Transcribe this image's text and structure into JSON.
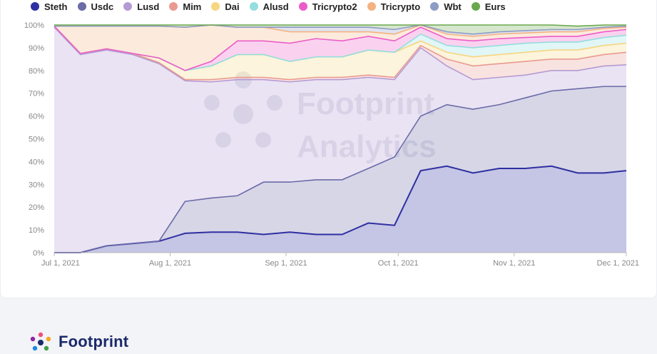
{
  "brand": {
    "name": "Footprint",
    "watermark_line1": "Footprint",
    "watermark_line2": "Analytics"
  },
  "chart_data": {
    "type": "area",
    "stacked": true,
    "normalized_percent": true,
    "legend_position": "top",
    "ylim": [
      0,
      100
    ],
    "yticks": [
      "0%",
      "10%",
      "20%",
      "30%",
      "40%",
      "50%",
      "60%",
      "70%",
      "80%",
      "90%",
      "100%"
    ],
    "x": [
      "2021-07-01",
      "2021-07-08",
      "2021-07-15",
      "2021-07-22",
      "2021-07-29",
      "2021-08-05",
      "2021-08-12",
      "2021-08-19",
      "2021-08-26",
      "2021-09-02",
      "2021-09-09",
      "2021-09-16",
      "2021-09-23",
      "2021-09-30",
      "2021-10-07",
      "2021-10-14",
      "2021-10-21",
      "2021-10-28",
      "2021-11-04",
      "2021-11-11",
      "2021-11-18",
      "2021-11-25",
      "2021-12-01"
    ],
    "xtick_labels": [
      "Jul 1, 2021",
      "Aug 1, 2021",
      "Sep 1, 2021",
      "Oct 1, 2021",
      "Nov 1, 2021",
      "Dec 1, 2021"
    ],
    "xtick_dates": [
      "2021-07-01",
      "2021-08-01",
      "2021-09-01",
      "2021-10-01",
      "2021-11-01",
      "2021-12-01"
    ],
    "series": [
      {
        "name": "Steth",
        "color": "#2e2fa0",
        "values": [
          0,
          0,
          3,
          4,
          5,
          8.5,
          9,
          9,
          8,
          9,
          8,
          8,
          13,
          12,
          36,
          38,
          35,
          37,
          37,
          38,
          35,
          35,
          36
        ]
      },
      {
        "name": "Usdc",
        "color": "#6b6ba8",
        "values": [
          0,
          0,
          0,
          0,
          0,
          14,
          15,
          16,
          23,
          22,
          24,
          24,
          24,
          30,
          24,
          27,
          28,
          28,
          31,
          33,
          37,
          38,
          37
        ]
      },
      {
        "name": "Lusd",
        "color": "#b59ad3",
        "values": [
          99,
          87,
          86,
          83,
          78,
          53,
          51,
          51,
          45,
          44,
          44,
          44,
          40,
          34,
          30,
          17,
          13,
          12,
          10,
          9,
          8,
          9,
          9.5
        ]
      },
      {
        "name": "Mim",
        "color": "#e99a90",
        "values": [
          0.5,
          0.5,
          0.5,
          0.5,
          0.5,
          0.5,
          1,
          1,
          1,
          1,
          1,
          1,
          1,
          1,
          1,
          3,
          6,
          6,
          6,
          5,
          5,
          5,
          5.5
        ]
      },
      {
        "name": "Dai",
        "color": "#f6d680",
        "values": [
          0,
          0,
          0,
          0,
          2,
          4,
          6,
          10,
          10,
          8,
          9,
          9,
          11,
          11,
          2,
          3,
          4,
          4,
          4,
          4,
          4,
          4,
          4
        ]
      },
      {
        "name": "Alusd",
        "color": "#93dede",
        "values": [
          0,
          0,
          0,
          0,
          0,
          0,
          0,
          0,
          0,
          0,
          0,
          0,
          0,
          0,
          3,
          3,
          4,
          4,
          4,
          3.5,
          3.5,
          3.5,
          3.5
        ]
      },
      {
        "name": "Tricrypto2",
        "color": "#ec5cc8",
        "values": [
          0,
          0,
          0,
          0,
          0,
          0,
          2,
          6,
          6,
          8,
          8,
          7,
          6,
          5,
          3,
          3,
          3,
          3,
          2.5,
          2.5,
          2.5,
          2.5,
          2.5
        ]
      },
      {
        "name": "Tricrypto",
        "color": "#f4b281",
        "values": [
          0,
          12,
          10,
          12,
          14,
          19,
          16,
          6,
          6,
          5,
          3,
          4,
          2,
          3,
          2,
          2,
          2,
          2,
          2,
          2,
          2,
          1.5,
          1
        ]
      },
      {
        "name": "Wbt",
        "color": "#8e9bc4",
        "values": [
          0,
          0,
          0,
          0,
          0,
          0,
          0,
          0,
          0,
          2,
          2,
          2,
          2,
          2,
          1,
          1,
          1,
          1,
          1,
          1,
          1,
          0.5,
          0.5
        ]
      },
      {
        "name": "Eurs",
        "color": "#6aa84f",
        "values": [
          0.5,
          0.5,
          0.5,
          0.5,
          0.5,
          1.5,
          0,
          1,
          1,
          1,
          1,
          1,
          1,
          2,
          2,
          3,
          4,
          3,
          2.5,
          2,
          1.5,
          1,
          1
        ]
      }
    ]
  }
}
